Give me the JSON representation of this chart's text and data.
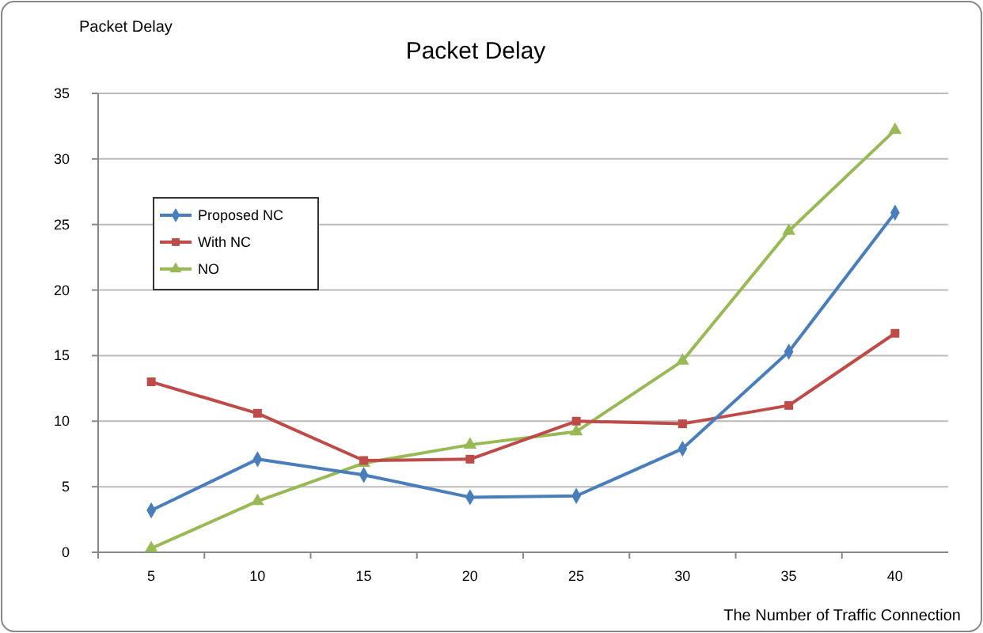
{
  "chart_data": {
    "type": "line",
    "title": "Packet Delay",
    "ylabel": "Packet Delay",
    "xlabel": "The Number of Traffic Connection",
    "categories": [
      "5",
      "10",
      "15",
      "20",
      "25",
      "30",
      "35",
      "40"
    ],
    "series": [
      {
        "name": "Proposed NC",
        "color": "#4a7ebb",
        "marker": "diamond",
        "values": [
          3.2,
          7.1,
          5.9,
          4.2,
          4.3,
          7.9,
          15.3,
          25.9
        ]
      },
      {
        "name": "With NC",
        "color": "#be4b48",
        "marker": "square",
        "values": [
          13,
          10.6,
          7,
          7.1,
          10,
          9.8,
          11.2,
          16.7
        ]
      },
      {
        "name": "NO",
        "color": "#98b954",
        "marker": "triangle",
        "values": [
          0.3,
          3.9,
          6.8,
          8.2,
          9.2,
          14.6,
          24.5,
          32.2
        ]
      }
    ],
    "ylim": [
      0,
      35
    ],
    "yticks": [
      0,
      5,
      10,
      15,
      20,
      25,
      30,
      35
    ],
    "grid": "y",
    "legend": "top left",
    "line_style": "solid"
  }
}
